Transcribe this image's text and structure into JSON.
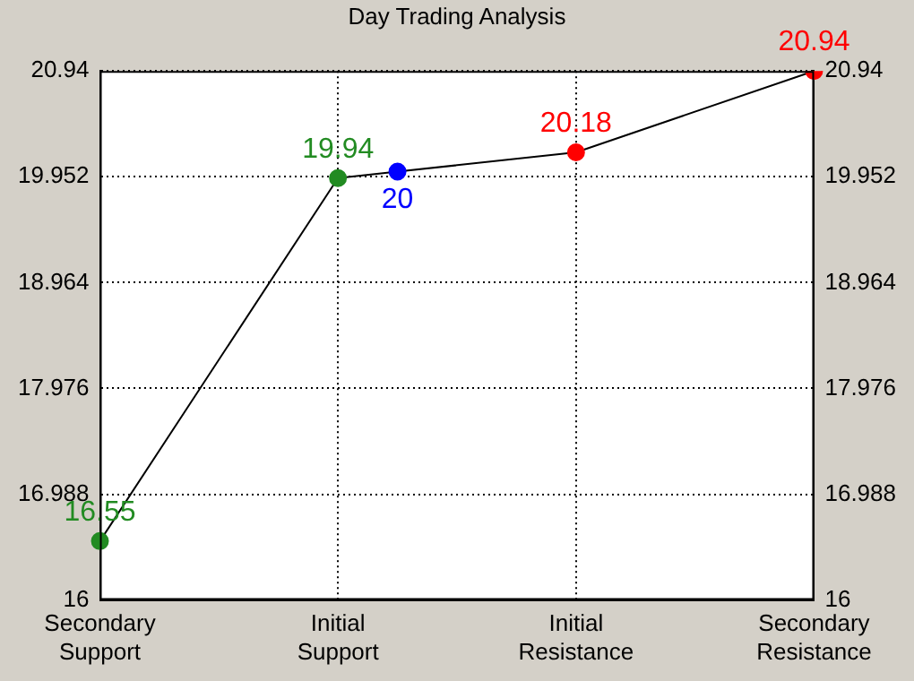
{
  "chart_data": {
    "type": "line",
    "title": "Day Trading Analysis",
    "categories": [
      "Secondary Support",
      null,
      null,
      null,
      "Initial Support",
      null,
      null,
      null,
      "Initial Resistance",
      null,
      null,
      null,
      "Secondary Resistance"
    ],
    "ylim": [
      16,
      20.94
    ],
    "yticks": [
      16,
      16.988,
      17.976,
      18.964,
      19.952,
      20.94
    ],
    "y2lim": [
      16,
      20.94
    ],
    "y2ticks": [
      16,
      16.988,
      17.976,
      18.964,
      19.952,
      20.94
    ],
    "series": [
      {
        "color": "#000000",
        "values": [
          16.55,
          null,
          null,
          null,
          19.94,
          20,
          null,
          null,
          20.18,
          null,
          null,
          null,
          20.94
        ],
        "colors": [
          "#228b22",
          null,
          null,
          null,
          "#228b22",
          "#0000ff",
          null,
          null,
          "#ff0000",
          null,
          null,
          null,
          "#ff0000"
        ],
        "value_labels": [
          "16.55",
          null,
          null,
          null,
          "19.94",
          "20",
          null,
          null,
          "20.18",
          null,
          null,
          null,
          "20.94"
        ]
      }
    ],
    "grid": true,
    "legend": false,
    "marker": "circle",
    "line_style": "solid"
  }
}
